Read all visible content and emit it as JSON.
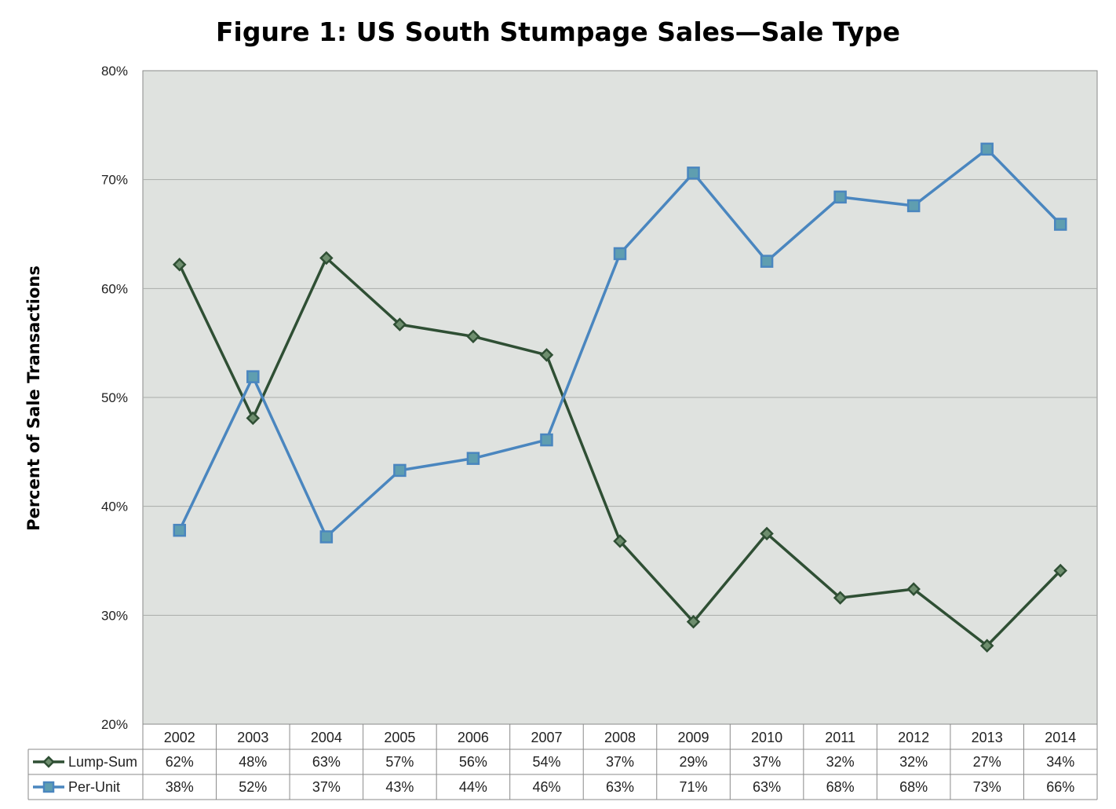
{
  "chart_data": {
    "type": "line",
    "title": "Figure 1: US South Stumpage Sales—Sale Type",
    "ylabel": "Percent of Sale Transactions",
    "xlabel": "",
    "ylim": [
      20,
      80
    ],
    "ytick_labels": [
      "20%",
      "30%",
      "40%",
      "50%",
      "60%",
      "70%",
      "80%"
    ],
    "grid": true,
    "legend": "data-table-left",
    "plot_bg": "#dfe2df",
    "categories": [
      "2002",
      "2003",
      "2004",
      "2005",
      "2006",
      "2007",
      "2008",
      "2009",
      "2010",
      "2011",
      "2012",
      "2013",
      "2014"
    ],
    "series": [
      {
        "name": "Lump-Sum",
        "color": "#2f4f34",
        "marker": "diamond",
        "marker_fill": "#6e8e6e",
        "values": [
          62.2,
          48.1,
          62.8,
          56.7,
          55.6,
          53.9,
          36.8,
          29.4,
          37.5,
          31.6,
          32.4,
          27.2,
          34.1
        ],
        "labels": [
          "62%",
          "48%",
          "63%",
          "57%",
          "56%",
          "54%",
          "37%",
          "29%",
          "37%",
          "32%",
          "32%",
          "27%",
          "34%"
        ]
      },
      {
        "name": "Per-Unit",
        "color": "#4a86bf",
        "marker": "square",
        "marker_fill": "#5f9eb0",
        "values": [
          37.8,
          51.9,
          37.2,
          43.3,
          44.4,
          46.1,
          63.2,
          70.6,
          62.5,
          68.4,
          67.6,
          72.8,
          65.9
        ],
        "labels": [
          "38%",
          "52%",
          "37%",
          "43%",
          "44%",
          "46%",
          "63%",
          "71%",
          "63%",
          "68%",
          "68%",
          "73%",
          "66%"
        ]
      }
    ]
  }
}
